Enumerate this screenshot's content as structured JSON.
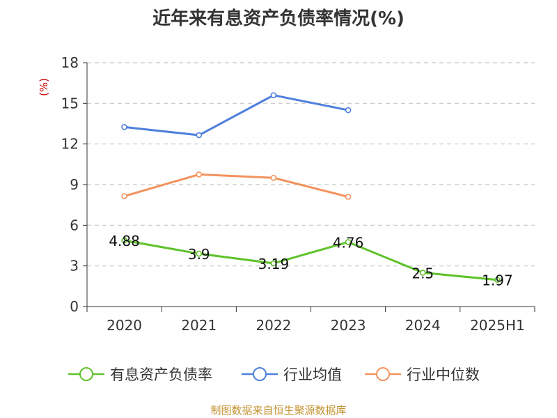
{
  "title": "近年来有息资产负债率情况(%)",
  "source": "制图数据来自恒生聚源数据库",
  "chart_data": {
    "type": "line",
    "title": "近年来有息资产负债率情况(%)",
    "ylabel": "(%)",
    "xlabel": "",
    "categories": [
      "2020",
      "2021",
      "2022",
      "2023",
      "2024",
      "2025H1"
    ],
    "ylim": [
      0,
      18
    ],
    "yticks": [
      0,
      3,
      6,
      9,
      12,
      15,
      18
    ],
    "grid": true,
    "legend_position": "bottom",
    "series": [
      {
        "name": "有息资产负债率",
        "color": "#5fc22b",
        "values": [
          4.88,
          3.9,
          3.19,
          4.76,
          2.5,
          1.97
        ],
        "labels": [
          "4.88",
          "3.9",
          "3.19",
          "4.76",
          "2.5",
          "1.97"
        ]
      },
      {
        "name": "行业均值",
        "color": "#4f7fdd",
        "values": [
          13.25,
          12.65,
          15.6,
          14.5,
          null,
          null
        ]
      },
      {
        "name": "行业中位数",
        "color": "#f3935e",
        "values": [
          8.15,
          9.75,
          9.5,
          8.1,
          null,
          null
        ]
      }
    ]
  }
}
